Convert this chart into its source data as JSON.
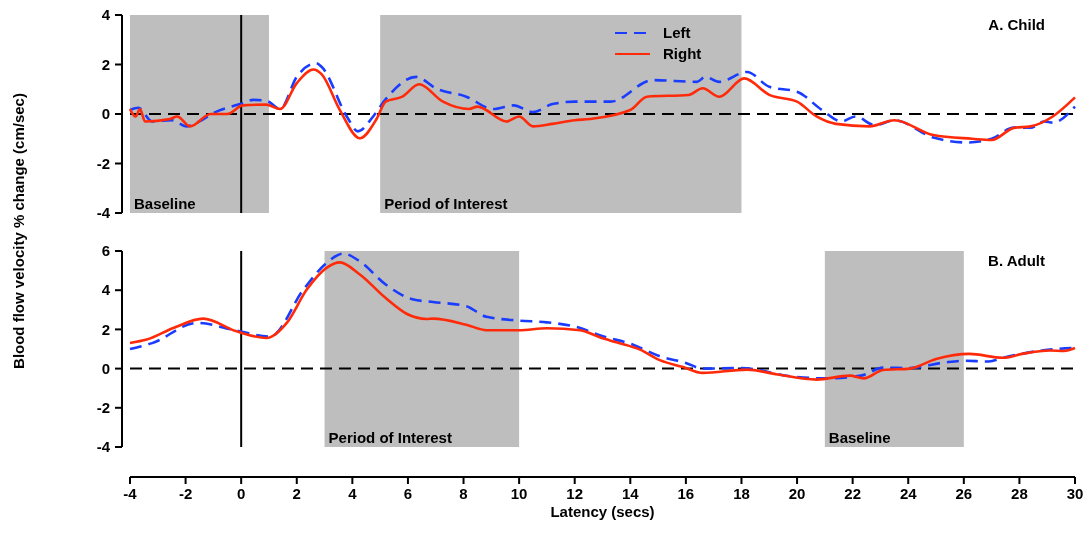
{
  "chart_data": [
    {
      "type": "line",
      "title": "A. Child",
      "ylabel": "Blood flow velocity % change (cm/sec)",
      "xlim": [
        -4,
        30
      ],
      "ylim": [
        -4,
        4
      ],
      "yticks": [
        -4,
        -2,
        0,
        2,
        4
      ],
      "tick_labels": "y",
      "legend": "top",
      "grid": false,
      "bands": [
        {
          "axis": "x",
          "from": -4,
          "to": 1,
          "label": "Baseline",
          "color": "#bebebe"
        },
        {
          "axis": "x",
          "from": 5,
          "to": 18,
          "label": "Period of Interest",
          "color": "#bebebe"
        }
      ],
      "ref_lines": [
        {
          "axis": "y",
          "value": 0,
          "line_style": "dashed",
          "color": "#000000"
        },
        {
          "axis": "x",
          "value": 0,
          "line_style": "solid",
          "color": "#000000"
        }
      ],
      "series": [
        {
          "name": "Left",
          "color": "#1a3cff",
          "line_style": "dashed",
          "x": [
            -4,
            -3.7,
            -3.2,
            -2.5,
            -1.96,
            -1.5,
            -1,
            -0.04,
            0.43,
            0.9,
            1.4,
            2,
            2.7,
            2.9,
            3.8,
            4.2,
            4.75,
            5.2,
            6.3,
            7,
            8.1,
            9.07,
            9.8,
            10.5,
            11.2,
            12,
            13.3,
            14.8,
            16.4,
            16.7,
            17.2,
            18.2,
            19,
            20,
            20.9,
            21.6,
            22.1,
            22.8,
            23.5,
            24.9,
            26.1,
            27,
            27.8,
            28.4,
            28.9,
            29.2,
            30
          ],
          "values": [
            0.16,
            0.25,
            -0.3,
            -0.25,
            -0.5,
            -0.3,
            0.04,
            0.4,
            0.57,
            0.54,
            0.2,
            1.5,
            2.05,
            1.9,
            -0.1,
            -0.7,
            -0.1,
            0.6,
            1.5,
            1.04,
            0.7,
            0.2,
            0.35,
            0.08,
            0.4,
            0.5,
            0.5,
            1.37,
            1.3,
            1.5,
            1.3,
            1.7,
            1.1,
            0.9,
            0.16,
            -0.3,
            -0.1,
            -0.45,
            -0.25,
            -0.95,
            -1.15,
            -1,
            -0.55,
            -0.55,
            -0.3,
            -0.35,
            0.3
          ]
        },
        {
          "name": "Right",
          "color": "#ff2a0a",
          "line_style": "solid",
          "x": [
            -4,
            -3.8,
            -3.64,
            -3.46,
            -2.56,
            -2.3,
            -1.84,
            -1.1,
            -0.5,
            0.06,
            0.9,
            1.4,
            2,
            2.6,
            2.9,
            3.55,
            4.27,
            4.87,
            5.2,
            5.8,
            6.4,
            7.26,
            8.2,
            8.5,
            9.55,
            10,
            10.5,
            11.2,
            12,
            12.55,
            14,
            14.6,
            16.1,
            16.6,
            17.2,
            18.1,
            19,
            20,
            20.7,
            21.4,
            22.6,
            23.5,
            24.9,
            26.3,
            27,
            27.8,
            28.4,
            29.2,
            30
          ],
          "values": [
            0.2,
            -0.1,
            0.2,
            -0.3,
            -0.2,
            -0.1,
            -0.5,
            0,
            0,
            0.35,
            0.38,
            0.2,
            1.25,
            1.8,
            1.6,
            0.16,
            -0.98,
            -0.2,
            0.5,
            0.7,
            1.2,
            0.5,
            0.2,
            0.3,
            -0.3,
            -0.1,
            -0.5,
            -0.4,
            -0.25,
            -0.2,
            0.16,
            0.7,
            0.77,
            1.04,
            0.7,
            1.44,
            0.77,
            0.5,
            -0.1,
            -0.4,
            -0.5,
            -0.25,
            -0.85,
            -1,
            -1.05,
            -0.56,
            -0.5,
            -0.1,
            0.67
          ]
        }
      ]
    },
    {
      "type": "line",
      "title": "B. Adult",
      "xlabel": "Latency (secs)",
      "xlim": [
        -4,
        30
      ],
      "xticks": [
        -4,
        -2,
        0,
        2,
        4,
        6,
        8,
        10,
        12,
        14,
        16,
        18,
        20,
        22,
        24,
        26,
        28,
        30
      ],
      "ylim": [
        -4,
        6
      ],
      "yticks": [
        -4,
        -2,
        0,
        2,
        4,
        6
      ],
      "grid": false,
      "bands": [
        {
          "axis": "x",
          "from": 3,
          "to": 10,
          "label": "Period of Interest",
          "color": "#bebebe"
        },
        {
          "axis": "x",
          "from": 21,
          "to": 26,
          "label": "Baseline",
          "color": "#bebebe"
        }
      ],
      "ref_lines": [
        {
          "axis": "y",
          "value": 0,
          "line_style": "dashed",
          "color": "#000000"
        },
        {
          "axis": "x",
          "value": 0,
          "line_style": "solid",
          "color": "#000000"
        }
      ],
      "series": [
        {
          "color": "#1a3cff",
          "line_style": "dashed",
          "x": [
            -4,
            -3.2,
            -1.6,
            -0.16,
            1.04,
            2.24,
            3.07,
            3.67,
            4.27,
            5.2,
            6.2,
            6.9,
            8.1,
            8.83,
            10,
            11,
            12.2,
            12.9,
            14.1,
            15.06,
            16,
            16.6,
            18,
            19.8,
            21,
            22.3,
            23.1,
            24.06,
            25.3,
            26,
            26.9,
            27.4,
            29.1,
            30
          ],
          "values": [
            1,
            1.3,
            2.33,
            1.94,
            1.63,
            4.03,
            5.39,
            5.87,
            5.47,
            4.29,
            3.52,
            3.4,
            3.18,
            2.64,
            2.45,
            2.36,
            2.07,
            1.7,
            1.22,
            0.63,
            0.29,
            0,
            0.03,
            -0.4,
            -0.5,
            -0.36,
            0.05,
            0.03,
            0.31,
            0.4,
            0.36,
            0.55,
            0.97,
            1.05
          ]
        },
        {
          "color": "#ff2a0a",
          "line_style": "solid",
          "x": [
            -4,
            -3.4,
            -2.44,
            -1.37,
            -0.16,
            0.92,
            1.64,
            2.36,
            3.07,
            3.55,
            4.27,
            5.2,
            5.95,
            6.67,
            6.9,
            8.1,
            8.83,
            10,
            11,
            12.2,
            12.9,
            13.5,
            14.35,
            15.06,
            15.9,
            16.6,
            18.2,
            19.3,
            20.7,
            21.9,
            22.4,
            23.1,
            24.06,
            25,
            26.2,
            27.4,
            28.1,
            29.1,
            29.6,
            30
          ],
          "values": [
            1.31,
            1.48,
            2.07,
            2.55,
            1.9,
            1.56,
            2.33,
            4.03,
            5.14,
            5.42,
            4.8,
            3.6,
            2.8,
            2.53,
            2.55,
            2.24,
            1.96,
            1.96,
            2.06,
            1.96,
            1.6,
            1.34,
            0.97,
            0.43,
            0.08,
            -0.22,
            -0.05,
            -0.3,
            -0.56,
            -0.36,
            -0.5,
            -0.07,
            0,
            0.49,
            0.75,
            0.55,
            0.75,
            0.92,
            0.9,
            1.05
          ]
        }
      ]
    }
  ]
}
